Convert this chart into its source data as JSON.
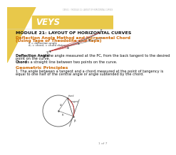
{
  "bg_color": "#ffffff",
  "left_triangle_color": "#e8c84a",
  "header_bar_color": "#e8c84a",
  "header_text": "VEYS",
  "breadcrumb": "CEISIG  /  MODULE 21: LAYOUT OF HORIZONTAL CURVES",
  "module_title": "MODULE 21: LAYOUT OF HORIZONTAL CURVES",
  "section1_title_line1": "Deflection Angle Method and Incremental Chord",
  "section1_title_line2": "(Using Tape or Theodolite and Tape)",
  "legend1": "d = deflection angle",
  "legend2": "d₁ = chord, = chord distance",
  "def1_bold": "Deflection Angle",
  "def1_rest": " - is the angle measured at the PC, from the back tangent to the desired",
  "def1_line2": "point on the curve.",
  "def2_bold": "Chord",
  "def2_rest": " - is a straight line between two points on the curve.",
  "section2_title": "Geometric Principles",
  "principle1_line1": "1. The angle between a tangent and a chord measured at the point of tangency is",
  "principle1_line2": "equal to one half of the central angle or angle subtended by the chord.",
  "page_num": "1 of 7",
  "title_fontsize": 4.5,
  "body_fontsize": 3.6,
  "small_fontsize": 3.2,
  "label_fontsize": 2.8
}
